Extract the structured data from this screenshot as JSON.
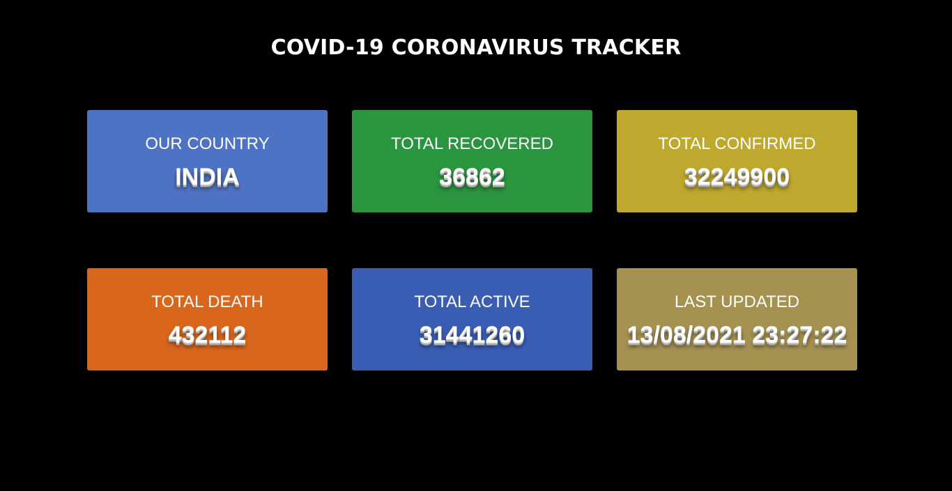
{
  "header": {
    "title": "COVID-19 CORONAVIRUS TRACKER"
  },
  "cards": [
    {
      "label": "OUR COUNTRY",
      "value": "INDIA",
      "color": "#4f73c4"
    },
    {
      "label": "TOTAL RECOVERED",
      "value": "36862",
      "color": "#2a953f"
    },
    {
      "label": "TOTAL CONFIRMED",
      "value": "32249900",
      "color": "#bfa82e"
    },
    {
      "label": "TOTAL DEATH",
      "value": "432112",
      "color": "#d9661d"
    },
    {
      "label": "TOTAL ACTIVE",
      "value": "31441260",
      "color": "#3a5db4"
    },
    {
      "label": "LAST UPDATED",
      "value": "13/08/2021 23:27:22",
      "color": "#a69250"
    }
  ]
}
